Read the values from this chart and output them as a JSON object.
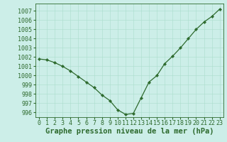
{
  "x": [
    0,
    1,
    2,
    3,
    4,
    5,
    6,
    7,
    8,
    9,
    10,
    11,
    12,
    13,
    14,
    15,
    16,
    17,
    18,
    19,
    20,
    21,
    22,
    23
  ],
  "y": [
    1001.8,
    1001.7,
    1001.4,
    1001.0,
    1000.5,
    999.9,
    999.3,
    998.7,
    997.9,
    997.3,
    996.3,
    995.8,
    995.9,
    997.6,
    999.3,
    1000.0,
    1001.3,
    1002.1,
    1003.0,
    1004.0,
    1005.0,
    1005.8,
    1006.4,
    1007.2
  ],
  "ylim": [
    995.5,
    1007.8
  ],
  "yticks": [
    996,
    997,
    998,
    999,
    1000,
    1001,
    1002,
    1003,
    1004,
    1005,
    1006,
    1007
  ],
  "xlim": [
    -0.5,
    23.5
  ],
  "xticks": [
    0,
    1,
    2,
    3,
    4,
    5,
    6,
    7,
    8,
    9,
    10,
    11,
    12,
    13,
    14,
    15,
    16,
    17,
    18,
    19,
    20,
    21,
    22,
    23
  ],
  "line_color": "#2d6a2d",
  "marker": "D",
  "marker_size": 2.2,
  "line_width": 0.9,
  "bg_color": "#cceee8",
  "grid_color": "#aaddcc",
  "xlabel": "Graphe pression niveau de la mer (hPa)",
  "xlabel_fontsize": 7.5,
  "tick_fontsize": 6.0,
  "ytick_labels": [
    "996",
    "997",
    "998",
    "999",
    "1000",
    "1001",
    "1002",
    "1003",
    "1004",
    "1005",
    "1006",
    "1007"
  ]
}
